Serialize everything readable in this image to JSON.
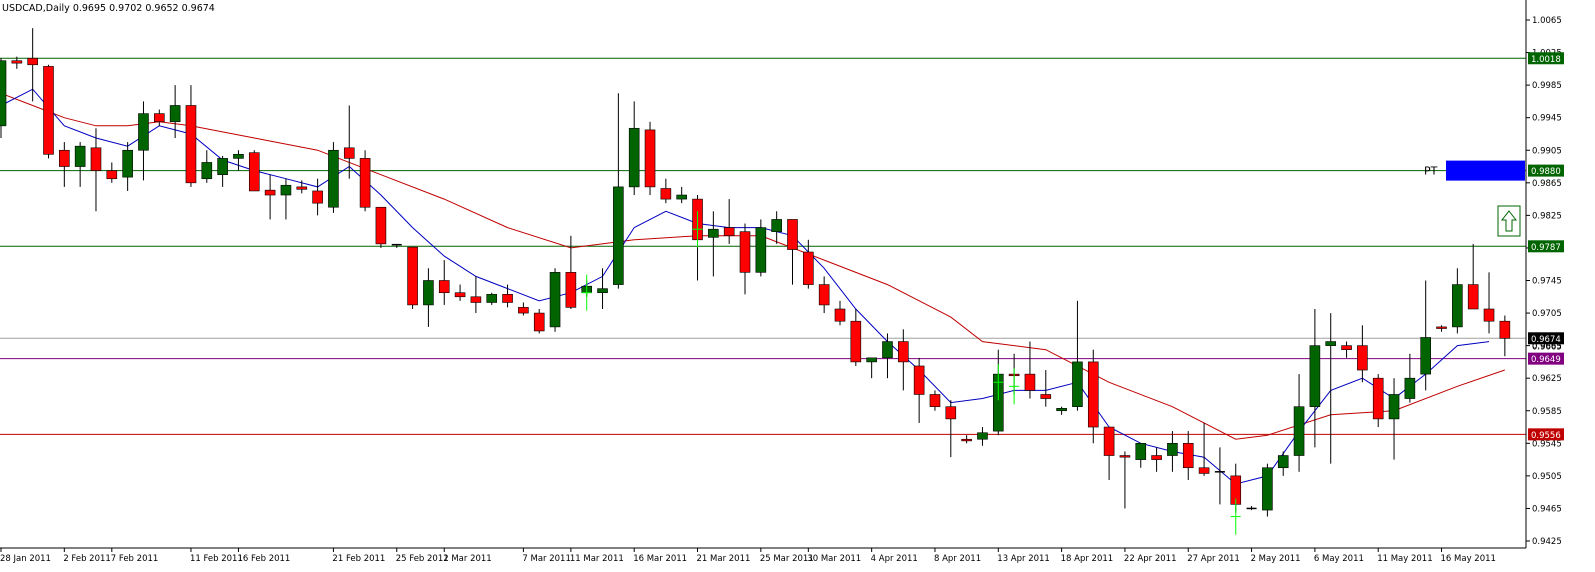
{
  "header": {
    "symbol_line": "USDCAD,Daily  0.9695 0.9702 0.9652 0.9674"
  },
  "chart_data": {
    "type": "candlestick",
    "symbol": "USDCAD",
    "timeframe": "Daily",
    "ohlc_header": {
      "open": 0.9695,
      "high": 0.9702,
      "low": 0.9652,
      "close": 0.9674
    },
    "ylim": [
      0.942,
      1.0065
    ],
    "y_ticks": [
      "1.0065",
      "1.0025",
      "0.9985",
      "0.9945",
      "0.9905",
      "0.9865",
      "0.9825",
      "0.9785",
      "0.9745",
      "0.9705",
      "0.9665",
      "0.9625",
      "0.9585",
      "0.9545",
      "0.9505",
      "0.9465",
      "0.9425"
    ],
    "x_tick_labels": [
      {
        "i": 0,
        "label": "28 Jan 2011"
      },
      {
        "i": 4,
        "label": "2 Feb 2011"
      },
      {
        "i": 7,
        "label": "7 Feb 2011"
      },
      {
        "i": 12,
        "label": "11 Feb 2011"
      },
      {
        "i": 15,
        "label": "16 Feb 2011"
      },
      {
        "i": 21,
        "label": "21 Feb 2011"
      },
      {
        "i": 25,
        "label": "25 Feb 2011"
      },
      {
        "i": 28,
        "label": "2 Mar 2011"
      },
      {
        "i": 33,
        "label": "7 Mar 2011"
      },
      {
        "i": 36,
        "label": "11 Mar 2011"
      },
      {
        "i": 40,
        "label": "16 Mar 2011"
      },
      {
        "i": 44,
        "label": "21 Mar 2011"
      },
      {
        "i": 48,
        "label": "25 Mar 2011"
      },
      {
        "i": 51,
        "label": "30 Mar 2011"
      },
      {
        "i": 55,
        "label": "4 Apr 2011"
      },
      {
        "i": 59,
        "label": "8 Apr 2011"
      },
      {
        "i": 63,
        "label": "13 Apr 2011"
      },
      {
        "i": 67,
        "label": "18 Apr 2011"
      },
      {
        "i": 71,
        "label": "22 Apr 2011"
      },
      {
        "i": 75,
        "label": "27 Apr 2011"
      },
      {
        "i": 79,
        "label": "2 May 2011"
      },
      {
        "i": 83,
        "label": "6 May 2011"
      },
      {
        "i": 87,
        "label": "11 May 2011"
      },
      {
        "i": 91,
        "label": "16 May 2011"
      }
    ],
    "candles": [
      [
        0.9935,
        1.0018,
        0.992,
        1.0015
      ],
      [
        1.0015,
        1.002,
        1.0005,
        1.0012
      ],
      [
        1.0018,
        1.0055,
        0.9965,
        1.001
      ],
      [
        1.0008,
        1.001,
        0.9895,
        0.99
      ],
      [
        0.9905,
        0.9915,
        0.986,
        0.9885
      ],
      [
        0.9885,
        0.9915,
        0.986,
        0.991
      ],
      [
        0.9908,
        0.9932,
        0.983,
        0.988
      ],
      [
        0.988,
        0.989,
        0.9865,
        0.987
      ],
      [
        0.9872,
        0.9915,
        0.9855,
        0.9905
      ],
      [
        0.9905,
        0.9965,
        0.9868,
        0.995
      ],
      [
        0.995,
        0.9955,
        0.9935,
        0.994
      ],
      [
        0.994,
        0.9985,
        0.992,
        0.996
      ],
      [
        0.996,
        0.9985,
        0.986,
        0.9865
      ],
      [
        0.987,
        0.9905,
        0.9865,
        0.989
      ],
      [
        0.9875,
        0.9898,
        0.986,
        0.9895
      ],
      [
        0.9895,
        0.9905,
        0.988,
        0.99
      ],
      [
        0.9902,
        0.9905,
        0.9855,
        0.9855
      ],
      [
        0.9856,
        0.9875,
        0.982,
        0.985
      ],
      [
        0.985,
        0.987,
        0.982,
        0.9862
      ],
      [
        0.986,
        0.9868,
        0.9852,
        0.9857
      ],
      [
        0.9855,
        0.987,
        0.9825,
        0.984
      ],
      [
        0.9835,
        0.9915,
        0.9828,
        0.9905
      ],
      [
        0.9908,
        0.996,
        0.987,
        0.9895
      ],
      [
        0.9895,
        0.9905,
        0.983,
        0.9835
      ],
      [
        0.9835,
        0.9835,
        0.9785,
        0.979
      ],
      [
        0.9789,
        0.979,
        0.9785,
        0.9788
      ],
      [
        0.9786,
        0.9786,
        0.971,
        0.9715
      ],
      [
        0.9715,
        0.976,
        0.9688,
        0.9745
      ],
      [
        0.9745,
        0.977,
        0.9715,
        0.973
      ],
      [
        0.973,
        0.974,
        0.972,
        0.9725
      ],
      [
        0.9725,
        0.975,
        0.9705,
        0.9718
      ],
      [
        0.9718,
        0.973,
        0.9715,
        0.9728
      ],
      [
        0.9728,
        0.974,
        0.9712,
        0.9718
      ],
      [
        0.9712,
        0.9718,
        0.9702,
        0.9705
      ],
      [
        0.9705,
        0.971,
        0.968,
        0.9683
      ],
      [
        0.9688,
        0.976,
        0.9682,
        0.9755
      ],
      [
        0.9755,
        0.98,
        0.971,
        0.9712
      ],
      [
        0.973,
        0.9745,
        0.9725,
        0.9738
      ],
      [
        0.973,
        0.976,
        0.971,
        0.9735
      ],
      [
        0.974,
        0.9975,
        0.9735,
        0.986
      ],
      [
        0.986,
        0.9965,
        0.985,
        0.9932
      ],
      [
        0.993,
        0.994,
        0.985,
        0.986
      ],
      [
        0.9858,
        0.987,
        0.984,
        0.9845
      ],
      [
        0.9845,
        0.986,
        0.984,
        0.985
      ],
      [
        0.9845,
        0.985,
        0.9745,
        0.9795
      ],
      [
        0.9798,
        0.983,
        0.975,
        0.9808
      ],
      [
        0.981,
        0.9845,
        0.979,
        0.98
      ],
      [
        0.9805,
        0.9815,
        0.9728,
        0.9755
      ],
      [
        0.9755,
        0.982,
        0.975,
        0.981
      ],
      [
        0.9805,
        0.983,
        0.979,
        0.982
      ],
      [
        0.982,
        0.982,
        0.974,
        0.9783
      ],
      [
        0.978,
        0.9795,
        0.9735,
        0.974
      ],
      [
        0.974,
        0.975,
        0.9705,
        0.9715
      ],
      [
        0.971,
        0.972,
        0.969,
        0.9695
      ],
      [
        0.9695,
        0.971,
        0.964,
        0.9645
      ],
      [
        0.9645,
        0.965,
        0.9625,
        0.965
      ],
      [
        0.965,
        0.968,
        0.9625,
        0.967
      ],
      [
        0.967,
        0.9685,
        0.961,
        0.9645
      ],
      [
        0.964,
        0.965,
        0.957,
        0.9605
      ],
      [
        0.9605,
        0.961,
        0.9585,
        0.959
      ],
      [
        0.959,
        0.9598,
        0.9528,
        0.9575
      ],
      [
        0.955,
        0.9555,
        0.9545,
        0.9548
      ],
      [
        0.955,
        0.9565,
        0.9542,
        0.9558
      ],
      [
        0.956,
        0.966,
        0.9555,
        0.963
      ],
      [
        0.963,
        0.9655,
        0.9605,
        0.9628
      ],
      [
        0.963,
        0.967,
        0.96,
        0.961
      ],
      [
        0.9605,
        0.9635,
        0.959,
        0.96
      ],
      [
        0.9585,
        0.959,
        0.958,
        0.9588
      ],
      [
        0.959,
        0.972,
        0.9585,
        0.9645
      ],
      [
        0.9645,
        0.966,
        0.9545,
        0.9565
      ],
      [
        0.9565,
        0.9565,
        0.95,
        0.953
      ],
      [
        0.953,
        0.9535,
        0.9465,
        0.9528
      ],
      [
        0.9525,
        0.9545,
        0.9515,
        0.9545
      ],
      [
        0.953,
        0.954,
        0.951,
        0.9525
      ],
      [
        0.953,
        0.956,
        0.951,
        0.9545
      ],
      [
        0.9545,
        0.956,
        0.95,
        0.9515
      ],
      [
        0.9515,
        0.957,
        0.9505,
        0.9508
      ],
      [
        0.951,
        0.954,
        0.947,
        0.951
      ],
      [
        0.9505,
        0.952,
        0.946,
        0.947
      ],
      [
        0.9465,
        0.9468,
        0.9463,
        0.9465
      ],
      [
        0.9463,
        0.952,
        0.9455,
        0.9515
      ],
      [
        0.9515,
        0.9535,
        0.9505,
        0.953
      ],
      [
        0.953,
        0.963,
        0.951,
        0.959
      ],
      [
        0.959,
        0.971,
        0.954,
        0.9665
      ],
      [
        0.9665,
        0.9705,
        0.952,
        0.967
      ],
      [
        0.9665,
        0.967,
        0.965,
        0.966
      ],
      [
        0.9665,
        0.969,
        0.962,
        0.9635
      ],
      [
        0.9625,
        0.963,
        0.9565,
        0.9575
      ],
      [
        0.9575,
        0.9625,
        0.9525,
        0.9605
      ],
      [
        0.96,
        0.9655,
        0.9595,
        0.9625
      ],
      [
        0.963,
        0.9745,
        0.961,
        0.9675
      ],
      [
        0.9688,
        0.969,
        0.9682,
        0.9686
      ],
      [
        0.9688,
        0.976,
        0.968,
        0.974
      ],
      [
        0.974,
        0.979,
        0.9715,
        0.971
      ],
      [
        0.971,
        0.9755,
        0.968,
        0.9695
      ],
      [
        0.9695,
        0.9702,
        0.9652,
        0.9674
      ]
    ],
    "ma_fast": [
      [
        0,
        0.996
      ],
      [
        2,
        0.998
      ],
      [
        4,
        0.9935
      ],
      [
        6,
        0.992
      ],
      [
        8,
        0.991
      ],
      [
        10,
        0.9935
      ],
      [
        12,
        0.9925
      ],
      [
        14,
        0.9893
      ],
      [
        16,
        0.988
      ],
      [
        18,
        0.987
      ],
      [
        20,
        0.986
      ],
      [
        22,
        0.9885
      ],
      [
        24,
        0.985
      ],
      [
        26,
        0.981
      ],
      [
        28,
        0.9775
      ],
      [
        30,
        0.975
      ],
      [
        32,
        0.9735
      ],
      [
        34,
        0.972
      ],
      [
        36,
        0.973
      ],
      [
        38,
        0.975
      ],
      [
        40,
        0.981
      ],
      [
        42,
        0.983
      ],
      [
        44,
        0.9815
      ],
      [
        46,
        0.981
      ],
      [
        48,
        0.981
      ],
      [
        50,
        0.98
      ],
      [
        52,
        0.976
      ],
      [
        54,
        0.971
      ],
      [
        56,
        0.967
      ],
      [
        58,
        0.9635
      ],
      [
        60,
        0.9595
      ],
      [
        62,
        0.96
      ],
      [
        64,
        0.961
      ],
      [
        66,
        0.961
      ],
      [
        68,
        0.962
      ],
      [
        70,
        0.9565
      ],
      [
        72,
        0.9545
      ],
      [
        74,
        0.9535
      ],
      [
        76,
        0.9528
      ],
      [
        78,
        0.9495
      ],
      [
        80,
        0.9505
      ],
      [
        82,
        0.956
      ],
      [
        84,
        0.961
      ],
      [
        86,
        0.9625
      ],
      [
        88,
        0.96
      ],
      [
        90,
        0.963
      ],
      [
        92,
        0.9665
      ],
      [
        94,
        0.967
      ]
    ],
    "ma_slow": [
      [
        0,
        0.9975
      ],
      [
        2,
        0.996
      ],
      [
        4,
        0.9945
      ],
      [
        6,
        0.9935
      ],
      [
        8,
        0.9935
      ],
      [
        10,
        0.994
      ],
      [
        12,
        0.9935
      ],
      [
        16,
        0.992
      ],
      [
        20,
        0.9905
      ],
      [
        24,
        0.9875
      ],
      [
        28,
        0.9845
      ],
      [
        32,
        0.981
      ],
      [
        36,
        0.9785
      ],
      [
        40,
        0.9795
      ],
      [
        44,
        0.98
      ],
      [
        48,
        0.98
      ],
      [
        52,
        0.977
      ],
      [
        56,
        0.974
      ],
      [
        60,
        0.97
      ],
      [
        62,
        0.967
      ],
      [
        66,
        0.966
      ],
      [
        70,
        0.962
      ],
      [
        74,
        0.959
      ],
      [
        78,
        0.955
      ],
      [
        80,
        0.9555
      ],
      [
        84,
        0.958
      ],
      [
        88,
        0.9585
      ],
      [
        92,
        0.9615
      ],
      [
        95,
        0.9635
      ]
    ],
    "horizontal_lines": [
      {
        "value": 1.0018,
        "color": "#006400",
        "label": "1.0018"
      },
      {
        "value": 0.988,
        "color": "#006400",
        "label": "0.9880"
      },
      {
        "value": 0.9787,
        "color": "#006400",
        "label": "0.9787"
      },
      {
        "value": 0.9649,
        "color": "#800080",
        "label": "0.9649"
      },
      {
        "value": 0.9556,
        "color": "#c00000",
        "label": "0.9556"
      }
    ],
    "current_price": {
      "value": 0.9674,
      "label": "0.9674",
      "partial_label": "0.9665"
    },
    "annotations": [
      {
        "label": "PT",
        "value": 0.988,
        "box_color": "#0000ff"
      }
    ],
    "colors": {
      "bull": "#006400",
      "bear": "#ff0000",
      "ma_fast": "#0000c0",
      "ma_slow": "#c00000",
      "cross": "#00ff00"
    }
  }
}
